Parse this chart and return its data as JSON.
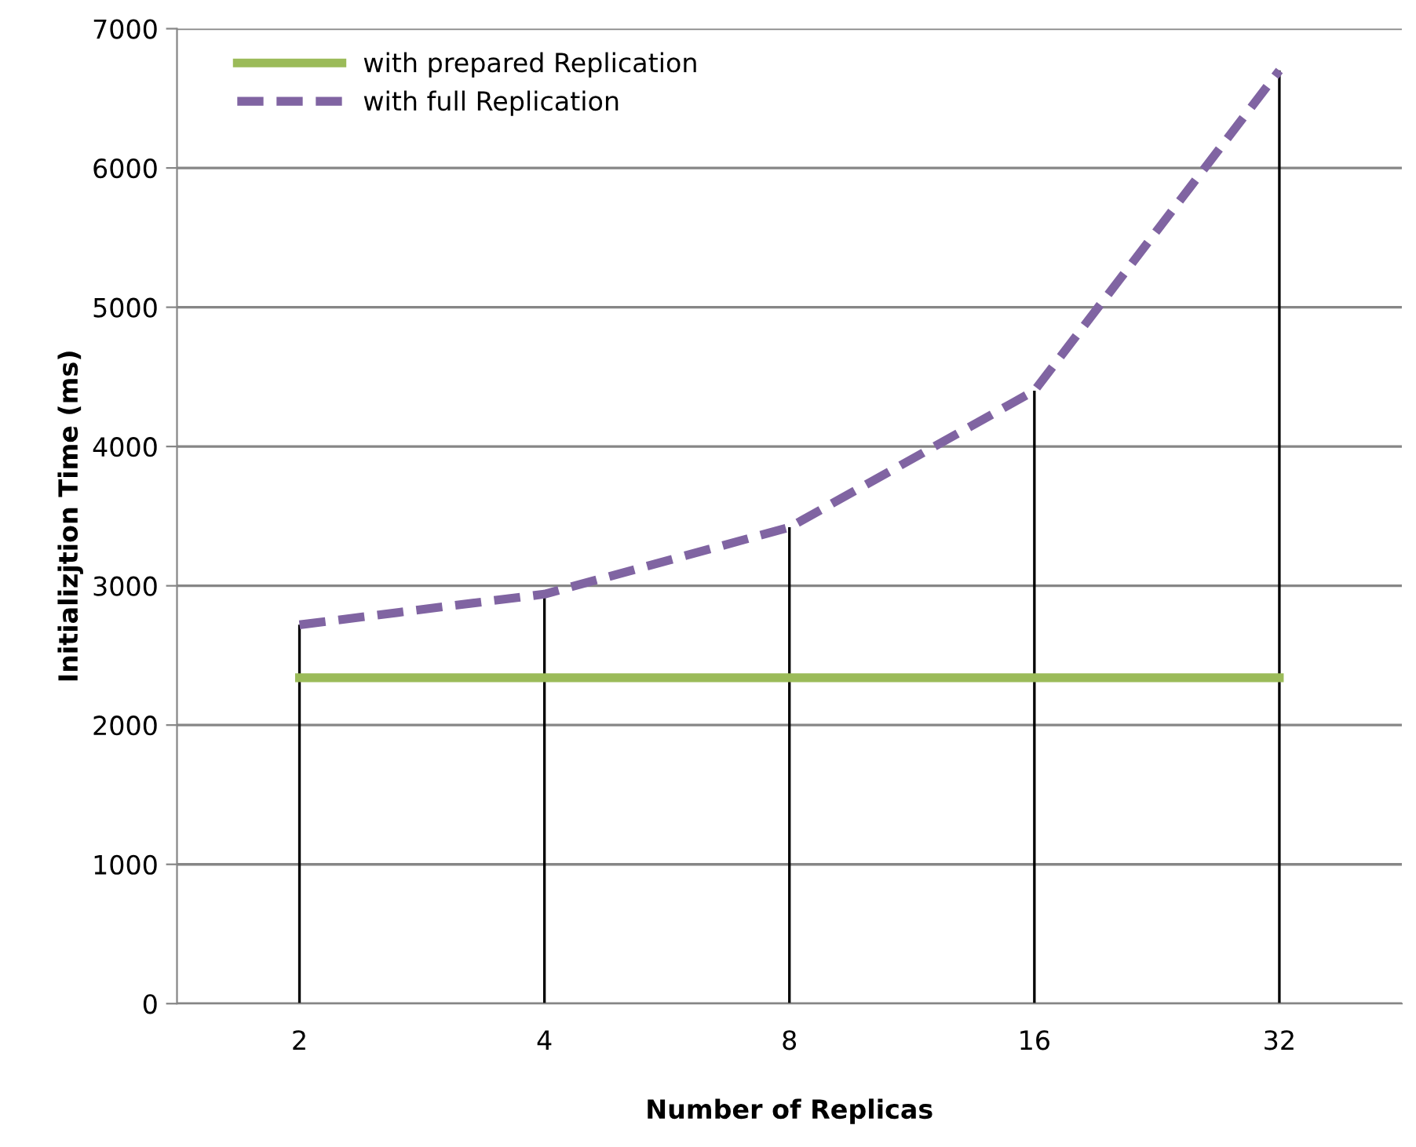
{
  "chart_data": {
    "type": "line",
    "xlabel": "Number of Replicas",
    "ylabel": "Initializjtion Time (ms)",
    "categories": [
      "2",
      "4",
      "8",
      "16",
      "32"
    ],
    "series": [
      {
        "name": "with prepared Replication",
        "color": "#9bbb59",
        "values": [
          2340,
          2340,
          2340,
          2340,
          2340
        ],
        "line_style": "solid"
      },
      {
        "name": "with full Replication",
        "color": "#8064a2",
        "values": [
          2720,
          2940,
          3420,
          4400,
          6700
        ],
        "errors": [
          [
            0,
            2720
          ],
          [
            0,
            2940
          ],
          [
            0,
            3420
          ],
          [
            0,
            4400
          ],
          [
            0,
            6700
          ]
        ],
        "line_style": "dashed"
      }
    ],
    "ylim": [
      0,
      7000
    ],
    "yticks": [
      0,
      1000,
      2000,
      3000,
      4000,
      5000,
      6000,
      7000
    ],
    "grid": "y",
    "legend": "top left",
    "marker": "none"
  }
}
